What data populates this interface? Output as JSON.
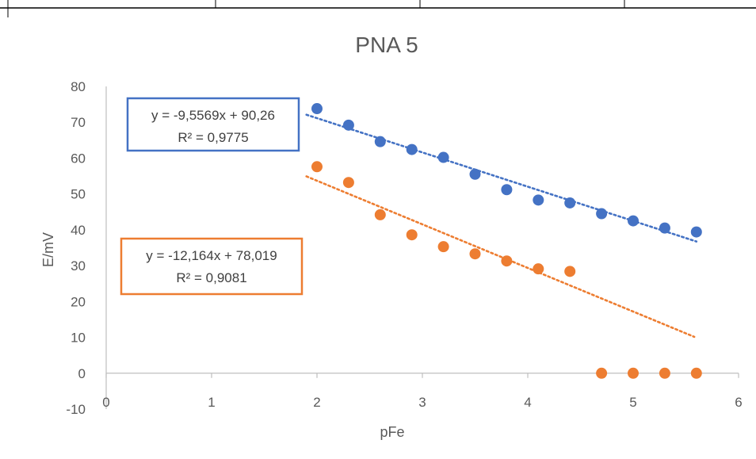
{
  "chart_data": {
    "type": "scatter",
    "title": "PNA 5",
    "xlabel": "pFe",
    "ylabel": "E/mV",
    "xlim": [
      0,
      6
    ],
    "ylim": [
      -10,
      80
    ],
    "x_ticks": [
      "0",
      "1",
      "2",
      "3",
      "4",
      "5",
      "6"
    ],
    "y_ticks": [
      "80",
      "70",
      "60",
      "50",
      "40",
      "30",
      "20",
      "10",
      "0",
      "-10"
    ],
    "grid": false,
    "legend": "none",
    "series": [
      {
        "color": "#4472C4",
        "x": [
          2.0,
          2.3,
          2.6,
          2.9,
          3.2,
          3.5,
          3.8,
          4.1,
          4.4,
          4.7,
          5.0,
          5.3,
          5.6
        ],
        "y": [
          73.8,
          69.2,
          64.6,
          62.4,
          60.2,
          55.5,
          51.2,
          48.3,
          47.5,
          44.5,
          42.5,
          40.5,
          39.4
        ],
        "trendline": {
          "type": "linear",
          "slope": -9.5569,
          "intercept": 90.26,
          "x_range": [
            1.9,
            5.6
          ],
          "equation": "y = -9,5569x + 90,26",
          "r2": "R² = 0,9775"
        }
      },
      {
        "color": "#ED7D31",
        "x": [
          2.0,
          2.3,
          2.6,
          2.9,
          3.2,
          3.5,
          3.8,
          4.1,
          4.4,
          4.7,
          5.0,
          5.3,
          5.6
        ],
        "y": [
          57.6,
          53.2,
          44.2,
          38.6,
          35.3,
          33.3,
          31.3,
          29.1,
          28.4,
          0,
          0,
          0,
          0
        ],
        "trendline": {
          "type": "linear",
          "slope": -12.164,
          "intercept": 78.019,
          "x_range": [
            1.9,
            5.58
          ],
          "equation": "y = -12,164x + 78,019",
          "r2": "R² = 0,9081"
        }
      }
    ]
  }
}
